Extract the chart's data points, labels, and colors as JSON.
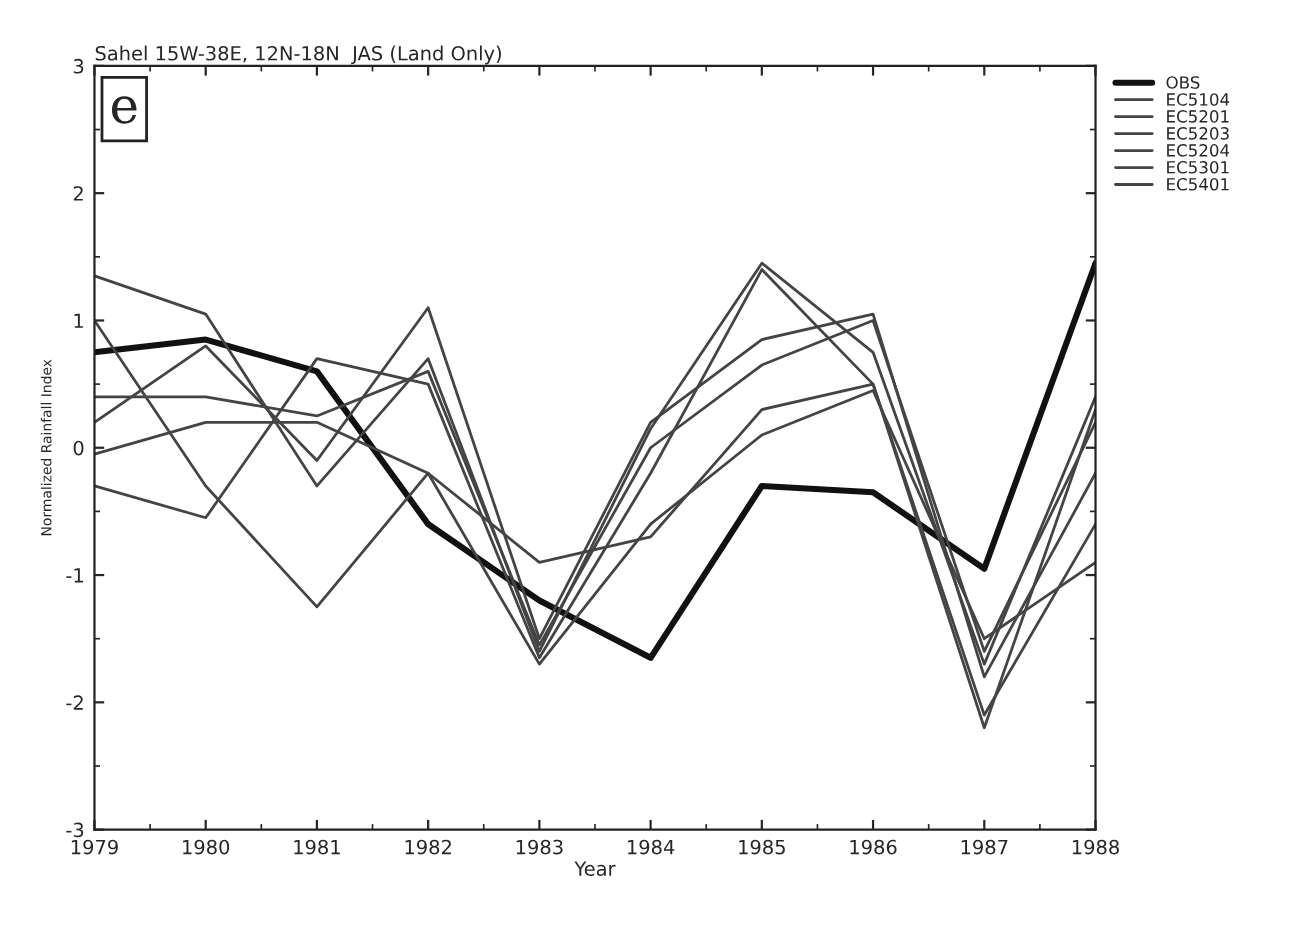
{
  "chart_data": {
    "type": "line",
    "title": "Sahel 15W-38E, 12N-18N  JAS (Land Only)",
    "xlabel": "Year",
    "ylabel": "Normalized Rainfall Index",
    "annotations": [
      "e"
    ],
    "x": [
      1979,
      1980,
      1981,
      1982,
      1983,
      1984,
      1985,
      1986,
      1987,
      1988
    ],
    "series": [
      {
        "name": "OBS",
        "color": "#111111",
        "values": [
          0.75,
          0.85,
          0.6,
          -0.6,
          -1.2,
          -1.65,
          -0.3,
          -0.35,
          -0.95,
          1.45
        ]
      },
      {
        "name": "EC5104",
        "color": "#444444",
        "values": [
          1.35,
          1.05,
          -0.3,
          0.7,
          -1.6,
          0.15,
          1.45,
          0.75,
          -1.7,
          0.4
        ]
      },
      {
        "name": "EC5201",
        "color": "#444444",
        "values": [
          1.0,
          -0.3,
          -1.25,
          -0.2,
          -0.9,
          -0.7,
          0.3,
          0.5,
          -2.2,
          0.3
        ]
      },
      {
        "name": "EC5203",
        "color": "#444444",
        "values": [
          0.4,
          0.4,
          0.25,
          0.6,
          -1.55,
          0.0,
          0.65,
          1.0,
          -1.6,
          0.2
        ]
      },
      {
        "name": "EC5204",
        "color": "#444444",
        "values": [
          0.2,
          0.8,
          -0.1,
          1.1,
          -1.5,
          0.2,
          0.85,
          1.05,
          -1.8,
          -0.2
        ]
      },
      {
        "name": "EC5301",
        "color": "#444444",
        "values": [
          -0.3,
          -0.55,
          0.7,
          0.5,
          -1.65,
          -0.2,
          1.4,
          0.5,
          -2.1,
          -0.6
        ]
      },
      {
        "name": "EC5401",
        "color": "#444444",
        "values": [
          -0.05,
          0.2,
          0.2,
          -0.2,
          -1.7,
          -0.6,
          0.1,
          0.45,
          -1.5,
          -0.9
        ]
      }
    ],
    "xlim": [
      1979,
      1988
    ],
    "xticks": [
      1979,
      1980,
      1981,
      1982,
      1983,
      1984,
      1985,
      1986,
      1987,
      1988
    ],
    "ylim": [
      -3,
      3
    ],
    "yticks": [
      -3,
      -2,
      -1,
      0,
      1,
      2,
      3
    ],
    "grid": false,
    "legend": "top right",
    "marker": "none",
    "line_style": "solid"
  }
}
